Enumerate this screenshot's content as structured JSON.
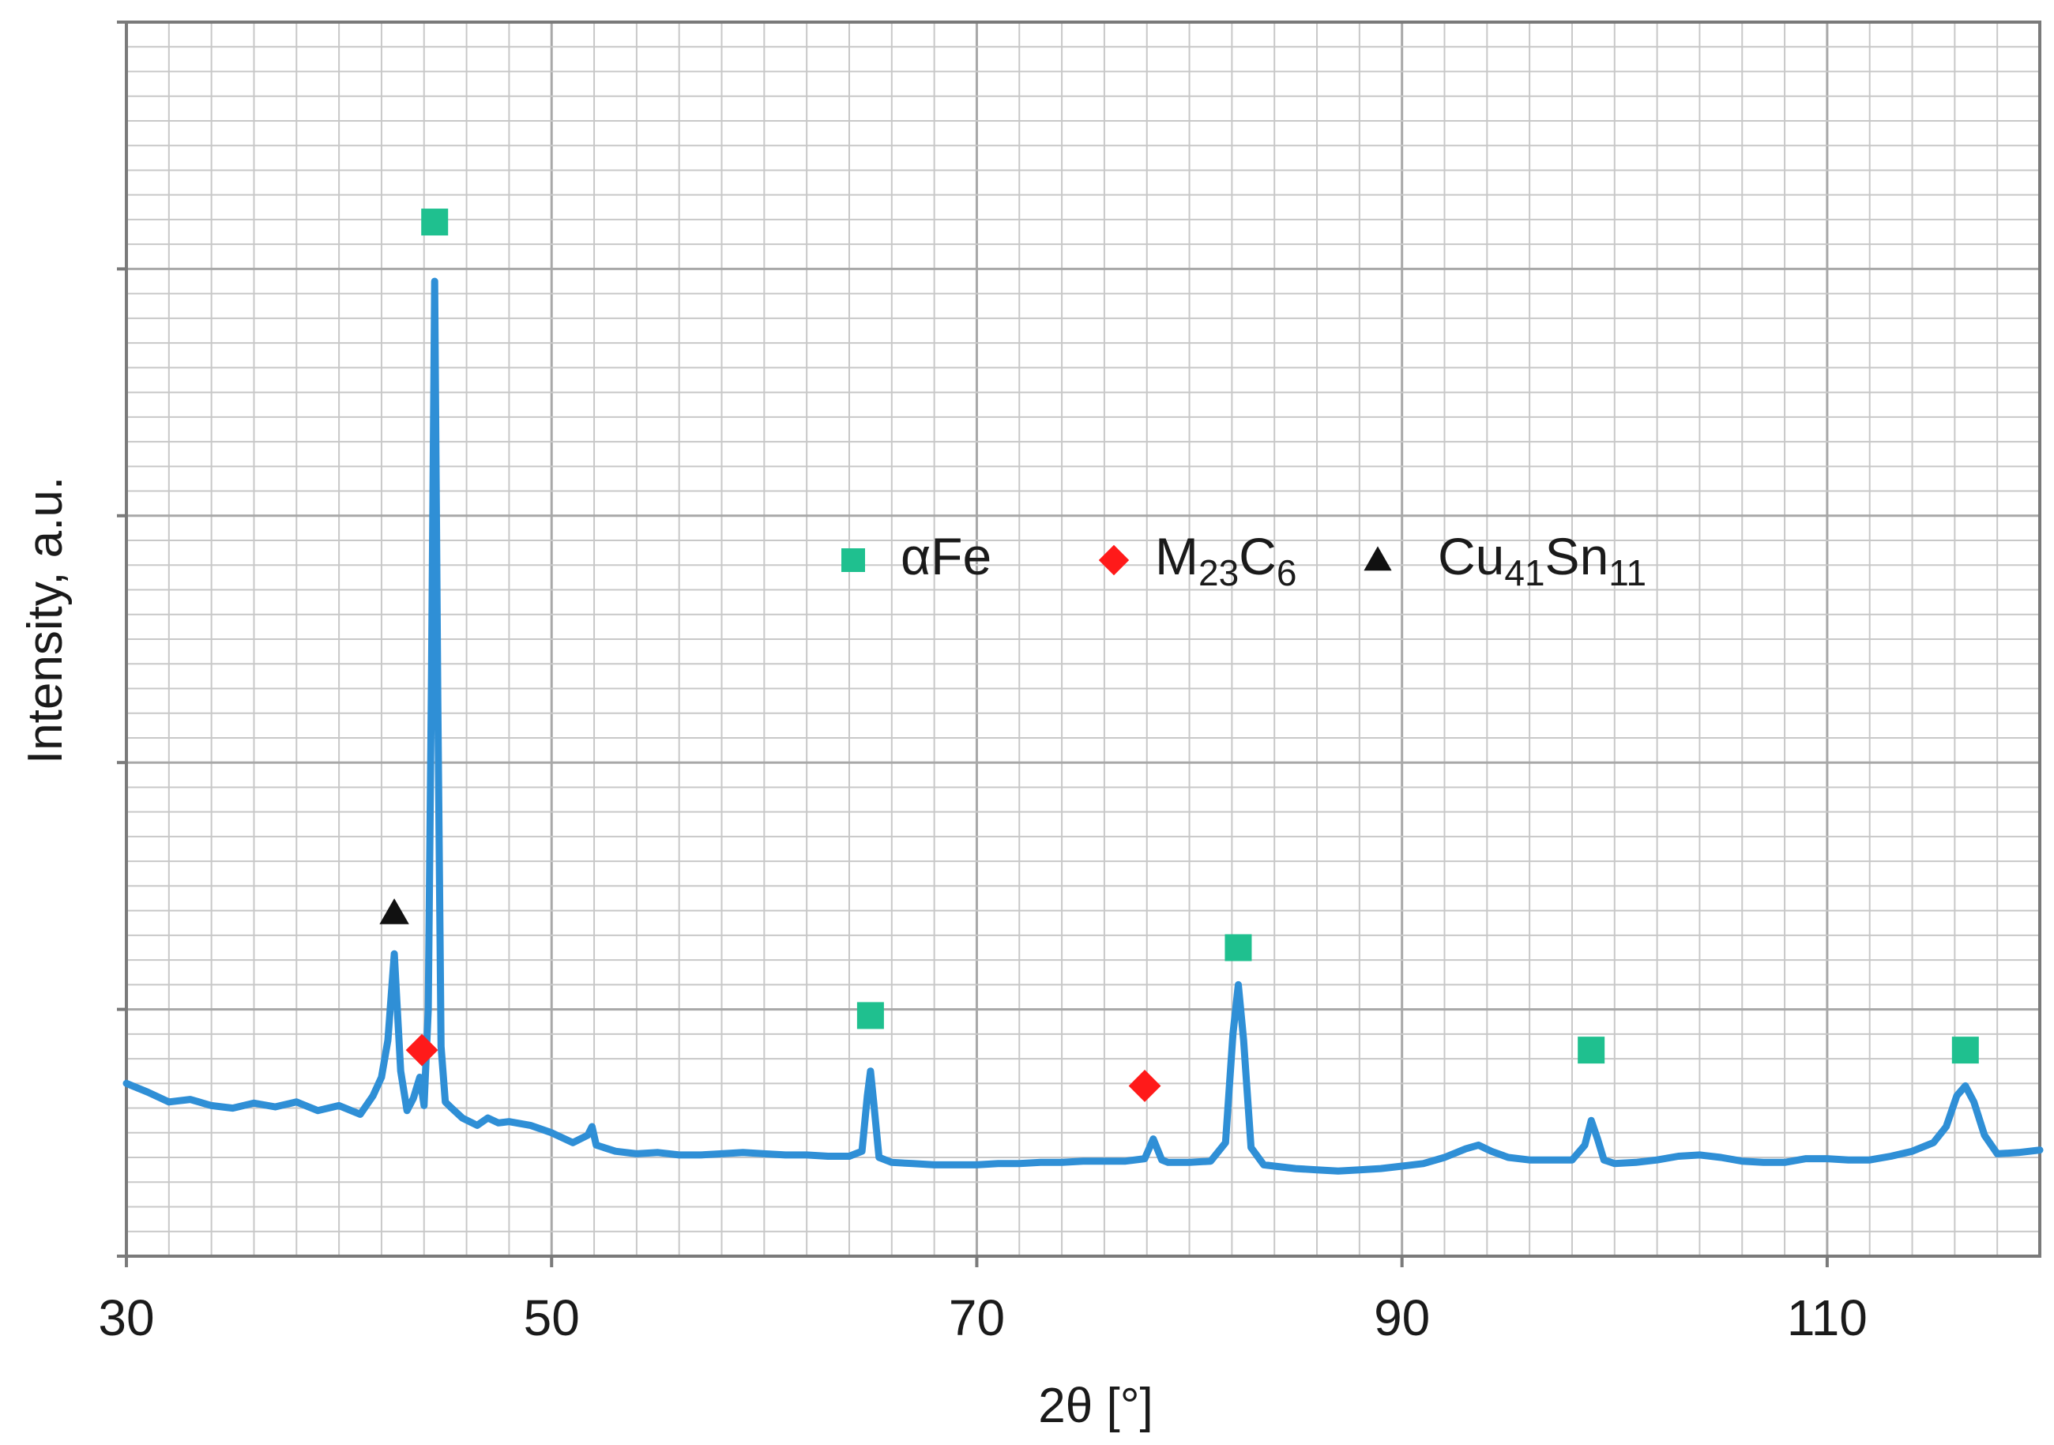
{
  "chart_data": {
    "type": "line",
    "xlabel": "2θ [°]",
    "ylabel": "Intensity, a.u.",
    "xlim": [
      30,
      120
    ],
    "ylim": [
      0,
      1000
    ],
    "x_ticks": [
      30,
      50,
      70,
      90,
      110
    ],
    "x_minor_step": 2,
    "y_grid_step": 20,
    "grid": true,
    "y_tick_labels": false,
    "legend_position": "center",
    "colors": {
      "line": "#2f8fd6",
      "aFe": "#1fc08f",
      "M23C6": "#ff1a1a",
      "Cu41Sn11": "#111111",
      "grid": "#c8c8c8",
      "axis": "#7a7a7a"
    },
    "legend": [
      {
        "key": "aFe",
        "marker": "square",
        "text": "αFe",
        "parts": [
          {
            "t": "αFe",
            "sub": false
          }
        ]
      },
      {
        "key": "M23C6",
        "marker": "diamond",
        "text": "M23C6",
        "parts": [
          {
            "t": "M",
            "sub": false
          },
          {
            "t": "23",
            "sub": true
          },
          {
            "t": "C",
            "sub": false
          },
          {
            "t": "6",
            "sub": true
          }
        ]
      },
      {
        "key": "Cu41Sn11",
        "marker": "triangle",
        "text": "Cu41Sn11",
        "parts": [
          {
            "t": "Cu",
            "sub": false
          },
          {
            "t": "41",
            "sub": true
          },
          {
            "t": "Sn",
            "sub": false
          },
          {
            "t": "11",
            "sub": true
          }
        ]
      }
    ],
    "series": [
      {
        "x": [
          30,
          31,
          32,
          33,
          34,
          35,
          36,
          37,
          38,
          39,
          40,
          41,
          41.6,
          42.0,
          42.3,
          42.6,
          42.9,
          43.2,
          43.5,
          43.8,
          44.0,
          44.2,
          44.35,
          44.5,
          44.65,
          44.8,
          45.0,
          45.3,
          45.8,
          46.5,
          47,
          47.5,
          48,
          49,
          50,
          51,
          51.7,
          51.9,
          52.1,
          53,
          54,
          55,
          56,
          57,
          58,
          59,
          60,
          61,
          62,
          63,
          64,
          64.6,
          64.85,
          65.0,
          65.15,
          65.4,
          66,
          67,
          68,
          69,
          70,
          71,
          72,
          73,
          74,
          75,
          76,
          77,
          77.9,
          78.3,
          78.7,
          79,
          80,
          81,
          81.7,
          82.05,
          82.3,
          82.55,
          82.9,
          83.5,
          84,
          85,
          86,
          87,
          88,
          89,
          90,
          91,
          92,
          93,
          93.6,
          94.2,
          95,
          96,
          97,
          98,
          98.6,
          98.9,
          99.2,
          99.5,
          100,
          101,
          102,
          103,
          104,
          105,
          106,
          107,
          108,
          109,
          110,
          111,
          112,
          113,
          114,
          115,
          115.6,
          116.1,
          116.5,
          116.9,
          117.4,
          118,
          119,
          120
        ],
        "y": [
          140,
          133,
          125,
          127,
          122,
          120,
          124,
          121,
          125,
          118,
          122,
          115,
          130,
          145,
          175,
          245,
          150,
          118,
          128,
          145,
          122,
          200,
          470,
          790,
          450,
          170,
          125,
          120,
          112,
          106,
          112,
          108,
          109,
          106,
          100,
          92,
          98,
          105,
          90,
          85,
          83,
          84,
          82,
          82,
          83,
          84,
          83,
          82,
          82,
          81,
          81,
          85,
          130,
          150,
          125,
          80,
          76,
          75,
          74,
          74,
          74,
          75,
          75,
          76,
          76,
          77,
          77,
          77,
          79,
          95,
          78,
          76,
          76,
          77,
          92,
          180,
          220,
          175,
          88,
          74,
          73,
          71,
          70,
          69,
          70,
          71,
          73,
          75,
          80,
          87,
          90,
          85,
          80,
          78,
          78,
          78,
          90,
          110,
          95,
          78,
          75,
          76,
          78,
          81,
          82,
          80,
          77,
          76,
          76,
          79,
          79,
          78,
          78,
          81,
          85,
          92,
          105,
          130,
          138,
          125,
          98,
          83,
          84,
          86
        ]
      }
    ],
    "markers": [
      {
        "phase": "aFe",
        "x": 44.5,
        "y": 838
      },
      {
        "phase": "aFe",
        "x": 65.0,
        "y": 195
      },
      {
        "phase": "aFe",
        "x": 82.3,
        "y": 250
      },
      {
        "phase": "aFe",
        "x": 98.9,
        "y": 167
      },
      {
        "phase": "aFe",
        "x": 116.5,
        "y": 167
      },
      {
        "phase": "M23C6",
        "x": 43.9,
        "y": 167
      },
      {
        "phase": "M23C6",
        "x": 77.9,
        "y": 138
      },
      {
        "phase": "Cu41Sn11",
        "x": 42.6,
        "y": 278
      }
    ]
  }
}
